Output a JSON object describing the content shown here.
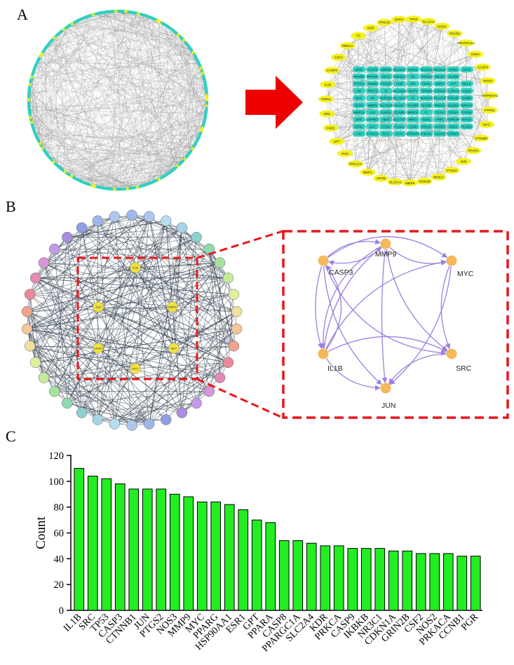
{
  "panels": {
    "a": {
      "letter": "A",
      "inner_ring": [
        "SRC",
        "GRIN1",
        "IL1B",
        "CASP8",
        "CSF2",
        "PRKCA",
        "F3",
        "KDR",
        "PRKCD",
        "DPP4",
        "TP53",
        "SLC2A4",
        "NOS2",
        "PPARG",
        "PPARGC1A",
        "ESR1",
        "CASP3",
        "NOS3",
        "HSP90AA1",
        "PTPN1",
        "MYC",
        "CTNNB1",
        "PPARA",
        "JUN",
        "PTGS2",
        "NR3C1",
        "GRIN2B",
        "MMP9",
        "SLC2A1",
        "APOB",
        "MMP1",
        "PRKACA",
        "PGR",
        "GPT",
        "CNR1"
      ],
      "grid": [
        [
          "MTR",
          "ACTA2",
          "ADRB2",
          "SLC6A2",
          "GRIA2",
          "SLC2A1",
          "SLC6A4",
          "PON1",
          "CPT2"
        ],
        [
          "PPARD",
          "PPARG",
          "OCT1",
          "CDKN1A",
          "PC",
          "PRSS3",
          "BCHE",
          "ALOX5"
        ],
        [
          "PTGS1",
          "IKBKB",
          "FASLG",
          "CKM",
          "GPI",
          "CDK1",
          "ESR2",
          "LTF",
          "BCL2"
        ],
        [
          "HIF",
          "TRPV1",
          "TF",
          "ALDH9A1",
          "MAP3",
          "OPRM1",
          "ATP6V1",
          "A GRIA1",
          "ASNS"
        ],
        [
          "BAX",
          "AR",
          "AKR1B1",
          "SLC6A3",
          "F2",
          "MAPK10",
          "PLA2G3",
          "PRKCE",
          "GABRI"
        ],
        [
          "SCHA",
          "MMP8",
          "SLC22A5",
          "MAOA",
          "CASP3",
          "MAOB",
          "PDE3A",
          "GLUD1",
          "GRIK2A"
        ],
        [
          "MMP12",
          "LPL",
          "CHEK1",
          "CCNB1",
          "NR3C2",
          "F7",
          "CYTH",
          "PCNA",
          "TOP2A"
        ],
        [
          "BTK",
          "LEPRE1",
          "ABAT",
          "SLC7A7",
          "BRD1",
          "GLB1",
          "ARF1",
          "ADRA2A",
          "NAGS"
        ],
        [
          "GRK1",
          "DAT",
          "CTSD",
          "F13A1",
          "CD36",
          "PRSS1",
          "ADRB1",
          "ARG2",
          "PLOD1"
        ],
        [
          "F10",
          "CYP1A1",
          "FLT1",
          "FLT4",
          "ATP6AP2",
          "P4HA2",
          "ALDH2",
          "CHRNA7"
        ]
      ],
      "colors": {
        "teal": "#2ed1c0",
        "yellow": "#f5f21a",
        "arrow": "#ee0000",
        "edge": "#8c8c8c"
      }
    },
    "b": {
      "letter": "B",
      "hub_nodes": [
        "IL1B",
        "JUN",
        "MMP9",
        "CASP3",
        "SRC",
        "MYC"
      ],
      "zoom_nodes": [
        "MMP9",
        "CASP3",
        "MYC",
        "IL1B",
        "SRC",
        "JUN"
      ],
      "colors": {
        "node": "#f5b85a",
        "edge": "#9b7fe0",
        "box": "#e8171d",
        "hub": "#f0e040"
      }
    },
    "c": {
      "letter": "C"
    }
  },
  "chart_data": {
    "type": "bar",
    "ylabel": "Count",
    "xlabel": "",
    "ylim": [
      0,
      120
    ],
    "yticks": [
      0,
      20,
      40,
      60,
      80,
      100,
      120
    ],
    "bar_color": "#22ee22",
    "categories": [
      "IL1B",
      "SRC",
      "TP53",
      "CASP3",
      "CTNNB1",
      "JUN",
      "PTGS2",
      "NOS3",
      "MMP9",
      "MYC",
      "PPARG",
      "HSP90AA1",
      "ESR1",
      "GPT",
      "PPARA",
      "CASP8",
      "PPARGC1A",
      "SLC2A4",
      "KDR",
      "PRKCA",
      "CASP9",
      "IKBKB",
      "NR3C1",
      "CDKN1A",
      "GRIN2B",
      "CSF2",
      "NOS2",
      "PRKACA",
      "CCNB1",
      "PGR"
    ],
    "values": [
      110,
      104,
      102,
      98,
      94,
      94,
      94,
      90,
      88,
      84,
      84,
      82,
      78,
      70,
      68,
      54,
      54,
      52,
      50,
      50,
      48,
      48,
      48,
      46,
      46,
      44,
      44,
      44,
      42,
      42
    ]
  }
}
